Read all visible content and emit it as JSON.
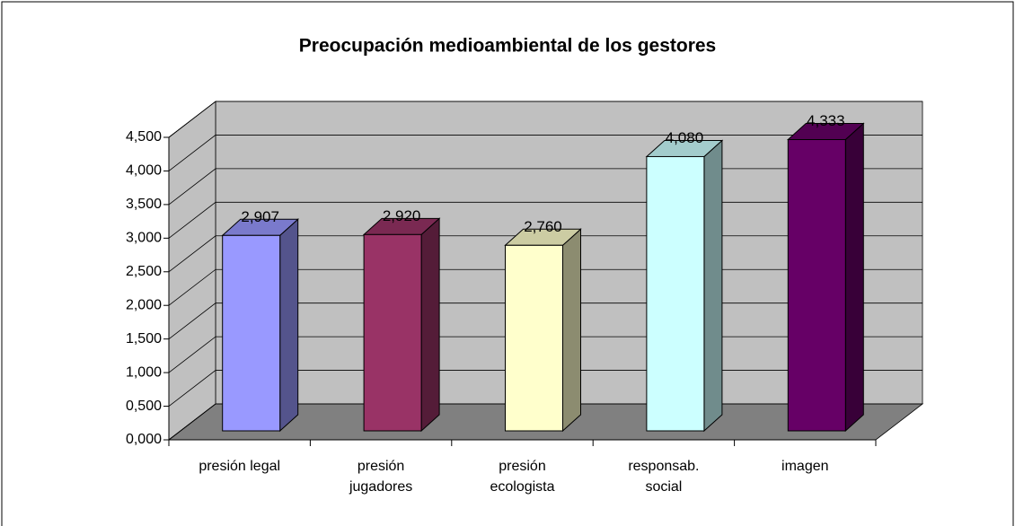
{
  "chart_data": {
    "type": "bar3d",
    "title": "Preocupación medioambiental de los gestores",
    "categories": [
      "presión legal",
      "presión\njugadores",
      "presión\necologista",
      "responsab.\nsocial",
      "imagen"
    ],
    "values": [
      2.907,
      2.92,
      2.76,
      4.08,
      4.333
    ],
    "value_labels": [
      "2,907",
      "2,920",
      "2,760",
      "4,080",
      "4,333"
    ],
    "colors": [
      "#9999ff",
      "#993366",
      "#ffffcc",
      "#ccffff",
      "#660066"
    ],
    "ylim": [
      0,
      4.5
    ],
    "yticks": [
      {
        "value": 0,
        "label": "0,000"
      },
      {
        "value": 0.5,
        "label": "0,500"
      },
      {
        "value": 1,
        "label": "1,000"
      },
      {
        "value": 1.5,
        "label": "1,500"
      },
      {
        "value": 2,
        "label": "2,000"
      },
      {
        "value": 2.5,
        "label": "2,500"
      },
      {
        "value": 3,
        "label": "3,000"
      },
      {
        "value": 3.5,
        "label": "3,500"
      },
      {
        "value": 4,
        "label": "4,000"
      },
      {
        "value": 4.5,
        "label": "4,500"
      }
    ],
    "grid": true
  }
}
